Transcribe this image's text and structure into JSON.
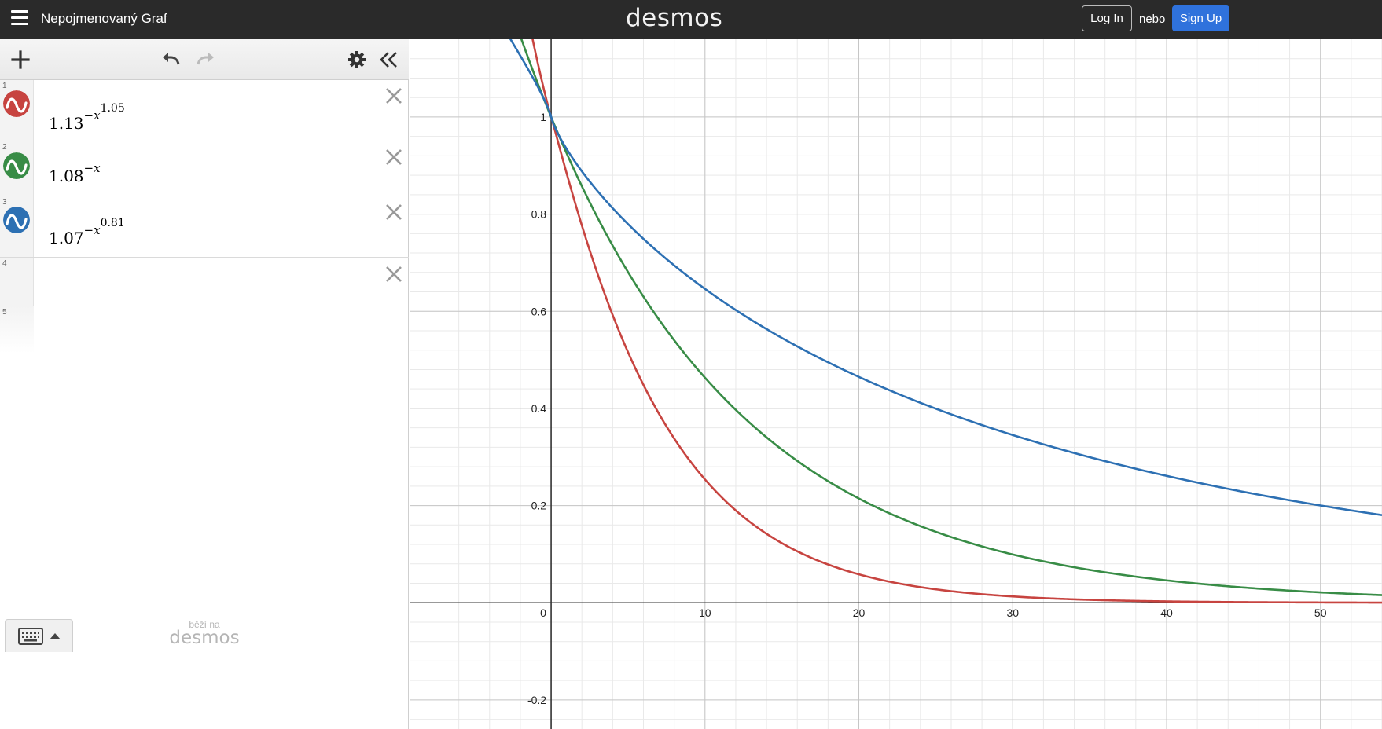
{
  "header": {
    "graph_title": "Nepojmenovaný Graf",
    "brand": "desmos",
    "login_label": "Log In",
    "or_label": "nebo",
    "signup_label": "Sign Up"
  },
  "expressions": [
    {
      "index": "1",
      "base": "1.13",
      "exp_main": "−x",
      "exp_power": "1.05",
      "color": "#c74440"
    },
    {
      "index": "2",
      "base": "1.08",
      "exp_main": "−x",
      "exp_power": "",
      "color": "#388c46"
    },
    {
      "index": "3",
      "base": "1.07",
      "exp_main": "−x",
      "exp_power": "0.81",
      "color": "#2d70b3"
    },
    {
      "index": "4"
    },
    {
      "index": "5"
    }
  ],
  "footer": {
    "powered_line1": "běží na",
    "powered_line2": "desmos"
  },
  "chart_data": {
    "type": "line",
    "x_range": [
      -9.2,
      54
    ],
    "y_range": [
      -0.26,
      1.16
    ],
    "x_ticks": [
      {
        "value": 0,
        "label": "0"
      },
      {
        "value": 10,
        "label": "10"
      },
      {
        "value": 20,
        "label": "20"
      },
      {
        "value": 30,
        "label": "30"
      },
      {
        "value": 40,
        "label": "40"
      },
      {
        "value": 50,
        "label": "50"
      }
    ],
    "y_ticks": [
      {
        "value": 1,
        "label": "1"
      },
      {
        "value": 0.8,
        "label": "0.8"
      },
      {
        "value": 0.6,
        "label": "0.6"
      },
      {
        "value": 0.4,
        "label": "0.4"
      },
      {
        "value": 0.2,
        "label": "0.2"
      },
      {
        "value": -0.2,
        "label": "-0.2"
      }
    ],
    "grid": true,
    "series": [
      {
        "base": 1.13,
        "power": 1.05,
        "color": "#c74440"
      },
      {
        "base": 1.08,
        "power": 1,
        "color": "#388c46"
      },
      {
        "base": 1.07,
        "power": 0.81,
        "color": "#2d70b3"
      }
    ]
  }
}
